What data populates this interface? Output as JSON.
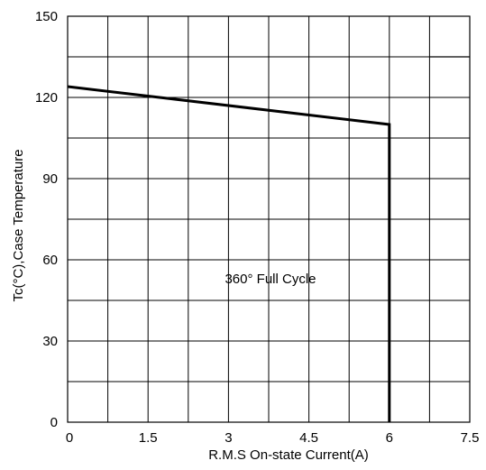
{
  "chart_data": {
    "type": "line",
    "title": "",
    "xlabel": "R.M.S On-state Current(A)",
    "ylabel": "Tc(°C),Case Temperature",
    "xlim": [
      0,
      7.5
    ],
    "ylim": [
      0,
      150
    ],
    "x_ticks": [
      0,
      1.5,
      3,
      4.5,
      6,
      7.5
    ],
    "x_tick_labels": [
      "0",
      "1.5",
      "3",
      "4.5",
      "6",
      "7.5"
    ],
    "y_ticks": [
      0,
      30,
      60,
      90,
      120,
      150
    ],
    "y_tick_labels": [
      "0",
      "30",
      "60",
      "90",
      "120",
      "150"
    ],
    "grid": true,
    "grid_x_step": 0.75,
    "grid_y_step": 15,
    "series": [
      {
        "x": [
          0,
          6,
          6
        ],
        "y": [
          124,
          110,
          0
        ]
      }
    ],
    "annotations": [
      {
        "text": "360° Full Cycle",
        "x": 3.75,
        "y": 53
      }
    ],
    "border_extra_segment": {
      "x": [
        6.75,
        7.5
      ],
      "y": [
        135,
        135
      ]
    }
  }
}
